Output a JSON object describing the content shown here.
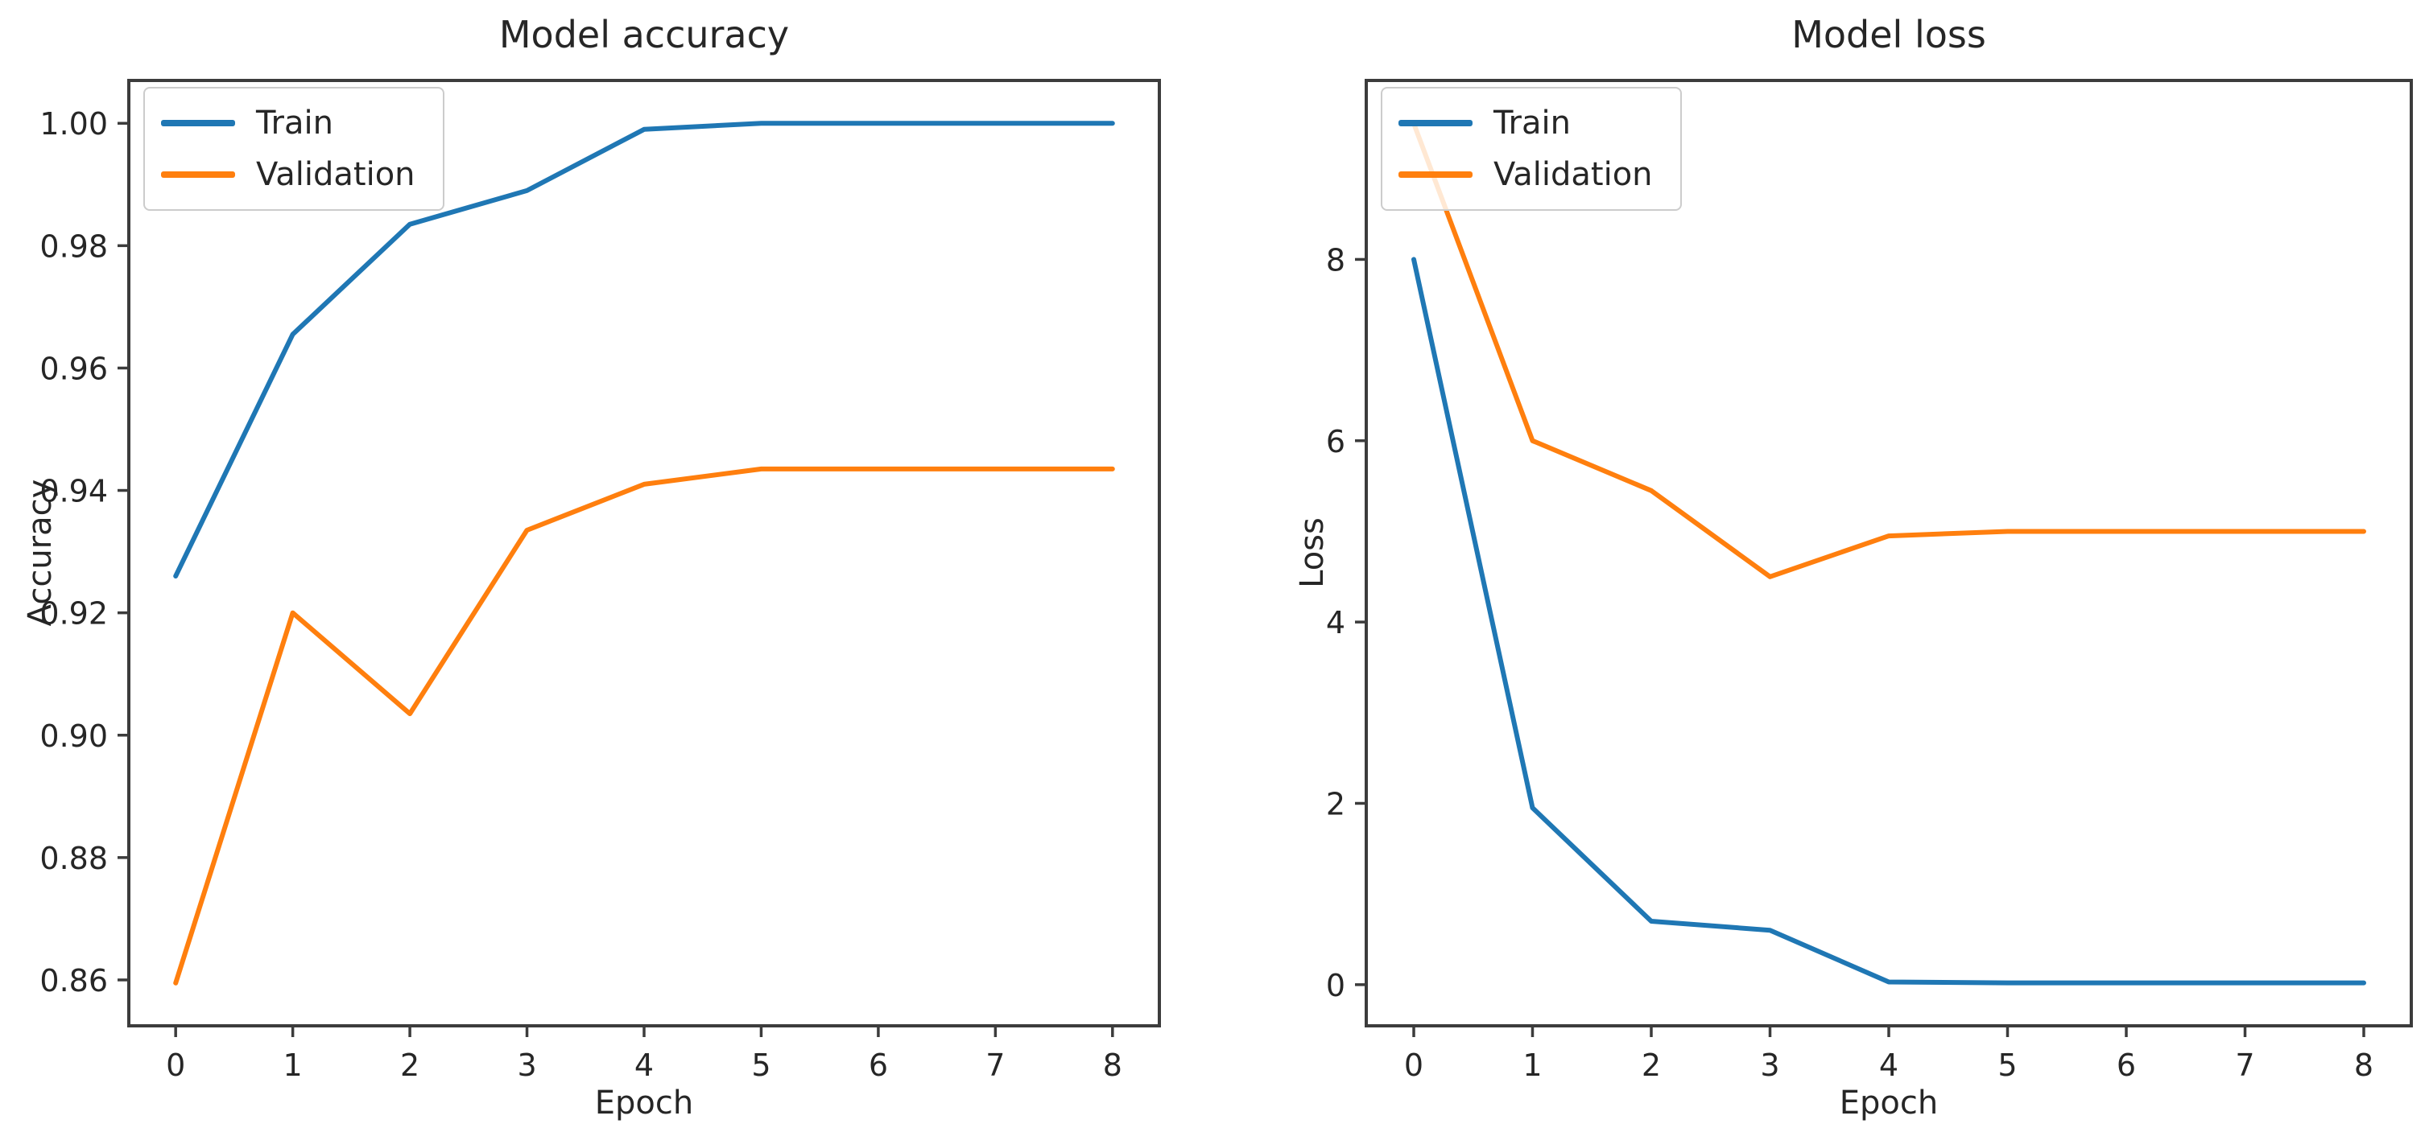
{
  "colors": {
    "train": "#1f77b4",
    "validation": "#ff7f0e",
    "axis": "#3c3c3c",
    "text": "#262626",
    "legend_border": "#cccccc",
    "background": "#ffffff"
  },
  "chart_data": [
    {
      "type": "line",
      "title": "Model accuracy",
      "xlabel": "Epoch",
      "ylabel": "Accuracy",
      "x": [
        0,
        1,
        2,
        3,
        4,
        5,
        6,
        7,
        8
      ],
      "series": [
        {
          "name": "Train",
          "color": "#1f77b4",
          "values": [
            0.926,
            0.9655,
            0.9835,
            0.989,
            0.999,
            1.0,
            1.0,
            1.0,
            1.0
          ]
        },
        {
          "name": "Validation",
          "color": "#ff7f0e",
          "values": [
            0.8595,
            0.92,
            0.9035,
            0.9335,
            0.941,
            0.9435,
            0.9435,
            0.9435,
            0.9435
          ]
        }
      ],
      "xlim": [
        -0.4,
        8.4
      ],
      "ylim": [
        0.8525,
        1.007
      ],
      "xticks": [
        0,
        1,
        2,
        3,
        4,
        5,
        6,
        7,
        8
      ],
      "xticklabels": [
        "0",
        "1",
        "2",
        "3",
        "4",
        "5",
        "6",
        "7",
        "8"
      ],
      "yticks": [
        0.86,
        0.88,
        0.9,
        0.92,
        0.94,
        0.96,
        0.98,
        1.0
      ],
      "yticklabels": [
        "0.86",
        "0.88",
        "0.90",
        "0.92",
        "0.94",
        "0.96",
        "0.98",
        "1.00"
      ],
      "legend_position": "upper left",
      "grid": false
    },
    {
      "type": "line",
      "title": "Model loss",
      "xlabel": "Epoch",
      "ylabel": "Loss",
      "x": [
        0,
        1,
        2,
        3,
        4,
        5,
        6,
        7,
        8
      ],
      "series": [
        {
          "name": "Train",
          "color": "#1f77b4",
          "values": [
            8.0,
            1.95,
            0.7,
            0.6,
            0.03,
            0.02,
            0.02,
            0.02,
            0.02
          ]
        },
        {
          "name": "Validation",
          "color": "#ff7f0e",
          "values": [
            9.5,
            6.0,
            5.45,
            4.5,
            4.95,
            5.0,
            5.0,
            5.0,
            5.0
          ]
        }
      ],
      "xlim": [
        -0.4,
        8.4
      ],
      "ylim": [
        -0.454,
        9.974
      ],
      "xticks": [
        0,
        1,
        2,
        3,
        4,
        5,
        6,
        7,
        8
      ],
      "xticklabels": [
        "0",
        "1",
        "2",
        "3",
        "4",
        "5",
        "6",
        "7",
        "8"
      ],
      "yticks": [
        0,
        2,
        4,
        6,
        8
      ],
      "yticklabels": [
        "0",
        "2",
        "4",
        "6",
        "8"
      ],
      "legend_position": "upper left",
      "grid": false
    }
  ]
}
